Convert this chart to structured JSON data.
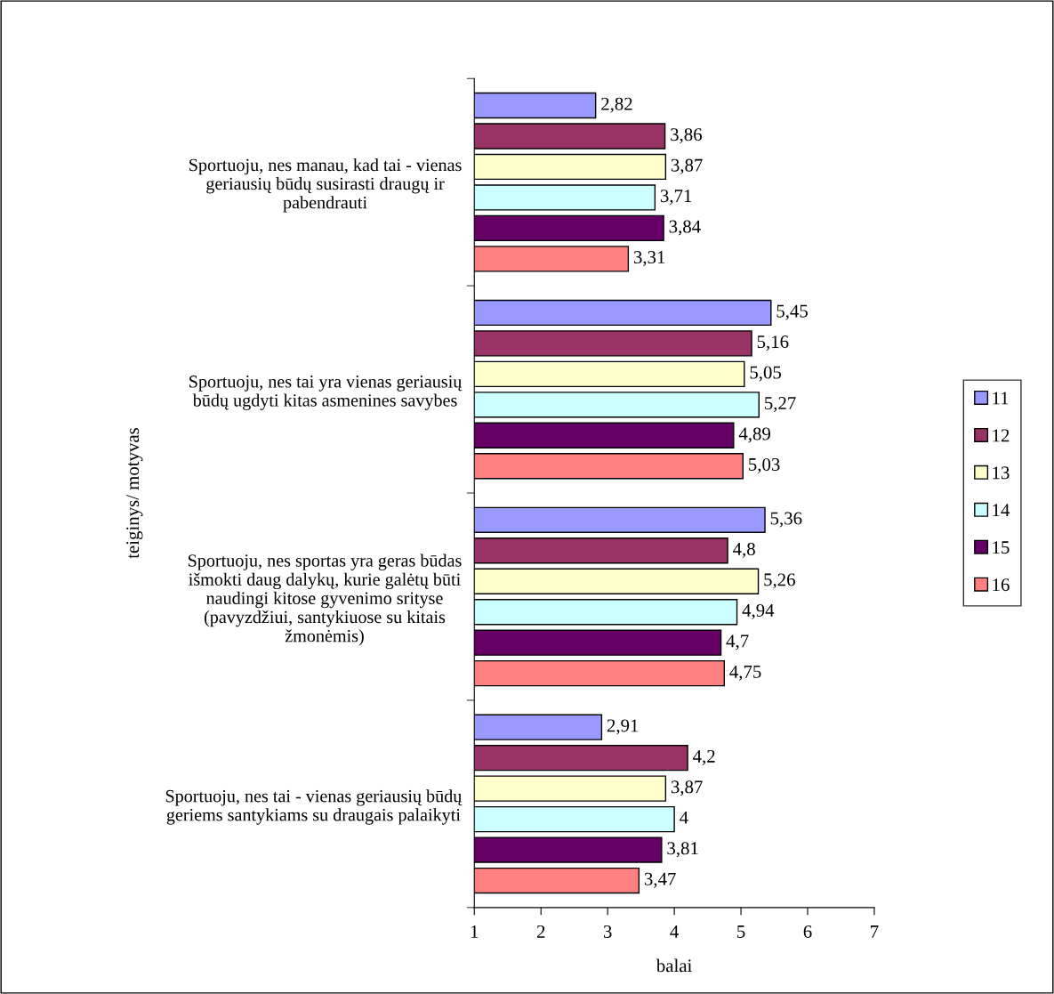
{
  "chart_data": {
    "type": "bar",
    "orientation": "horizontal",
    "xlabel": "balai",
    "ylabel": "teiginys/ motyvas",
    "categories": [
      "Sportuoju, nes manau, kad tai - vienas\ngeriausių būdų susirasti draugų ir\npabendrauti",
      "Sportuoju, nes tai yra vienas geriausių\nbūdų ugdyti kitas asmenines savybes",
      "Sportuoju, nes sportas yra geras būdas\nišmokti daug dalykų, kurie galėtų būti\nnaudingi kitose gyvenimo srityse\n(pavyzdžiui, santykiuose su kitais\nžmonėmis)",
      "Sportuoju, nes tai - vienas geriausių būdų\ngeriems santykiams su draugais palaikyti"
    ],
    "series": [
      {
        "name": "11",
        "color": "#9999ff",
        "values": [
          2.82,
          5.45,
          5.36,
          2.91
        ],
        "value_labels": [
          "2,82",
          "5,45",
          "5,36",
          "2,91"
        ]
      },
      {
        "name": "12",
        "color": "#993366",
        "values": [
          3.86,
          5.16,
          4.8,
          4.2
        ],
        "value_labels": [
          "3,86",
          "5,16",
          "4,8",
          "4,2"
        ]
      },
      {
        "name": "13",
        "color": "#ffffcc",
        "values": [
          3.87,
          5.05,
          5.26,
          3.87
        ],
        "value_labels": [
          "3,87",
          "5,05",
          "5,26",
          "3,87"
        ]
      },
      {
        "name": "14",
        "color": "#ccffff",
        "values": [
          3.71,
          5.27,
          4.94,
          4
        ],
        "value_labels": [
          "3,71",
          "5,27",
          "4,94",
          "4"
        ]
      },
      {
        "name": "15",
        "color": "#660066",
        "values": [
          3.84,
          4.89,
          4.7,
          3.81
        ],
        "value_labels": [
          "3,84",
          "4,89",
          "4,7",
          "3,81"
        ]
      },
      {
        "name": "16",
        "color": "#ff8080",
        "values": [
          3.31,
          5.03,
          4.75,
          3.47
        ],
        "value_labels": [
          "3,31",
          "5,03",
          "4,75",
          "3,47"
        ]
      }
    ],
    "xlim": [
      1,
      7
    ],
    "xticks": [
      1,
      2,
      3,
      4,
      5,
      6,
      7
    ],
    "grid": false,
    "legend": "right"
  }
}
